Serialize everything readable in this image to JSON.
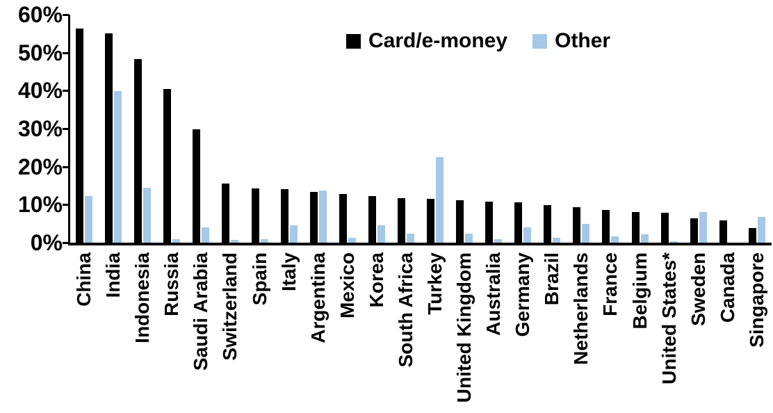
{
  "chart_data": {
    "type": "bar",
    "title": "",
    "xlabel": "",
    "ylabel": "",
    "ylim": [
      0,
      60
    ],
    "ytick_step": 10,
    "ytick_labels": [
      "0%",
      "10%",
      "20%",
      "30%",
      "40%",
      "50%",
      "60%"
    ],
    "grid": false,
    "legend_position": "top-center",
    "categories": [
      "China",
      "India",
      "Indonesia",
      "Russia",
      "Saudi Arabia",
      "Switzerland",
      "Spain",
      "Italy",
      "Argentina",
      "Mexico",
      "Korea",
      "South Africa",
      "Turkey",
      "United Kingdom",
      "Australia",
      "Germany",
      "Brazil",
      "Netherlands",
      "France",
      "Belgium",
      "United States*",
      "Sweden",
      "Canada",
      "Singapore"
    ],
    "series": [
      {
        "name": "Card/e-money",
        "color": "#000000",
        "values": [
          56.3,
          55.1,
          48.3,
          40.5,
          29.8,
          15.5,
          14.3,
          14.1,
          13.4,
          12.9,
          12.2,
          11.7,
          11.6,
          11.1,
          10.8,
          10.6,
          9.9,
          9.3,
          8.6,
          8.1,
          7.9,
          6.4,
          5.9,
          3.9
        ]
      },
      {
        "name": "Other",
        "color": "#A5C8E9",
        "values": [
          12.3,
          39.8,
          14.4,
          1.0,
          4.0,
          0.7,
          0.9,
          4.6,
          13.8,
          1.3,
          4.6,
          2.4,
          22.6,
          2.4,
          1.0,
          4.0,
          1.2,
          4.9,
          1.6,
          2.2,
          0.4,
          8.0,
          0.0,
          6.8
        ]
      }
    ]
  },
  "colors": {
    "background": "#FFFFFF",
    "axis": "#000000",
    "card_series": "#000000",
    "other_series": "#A5C8E9"
  }
}
